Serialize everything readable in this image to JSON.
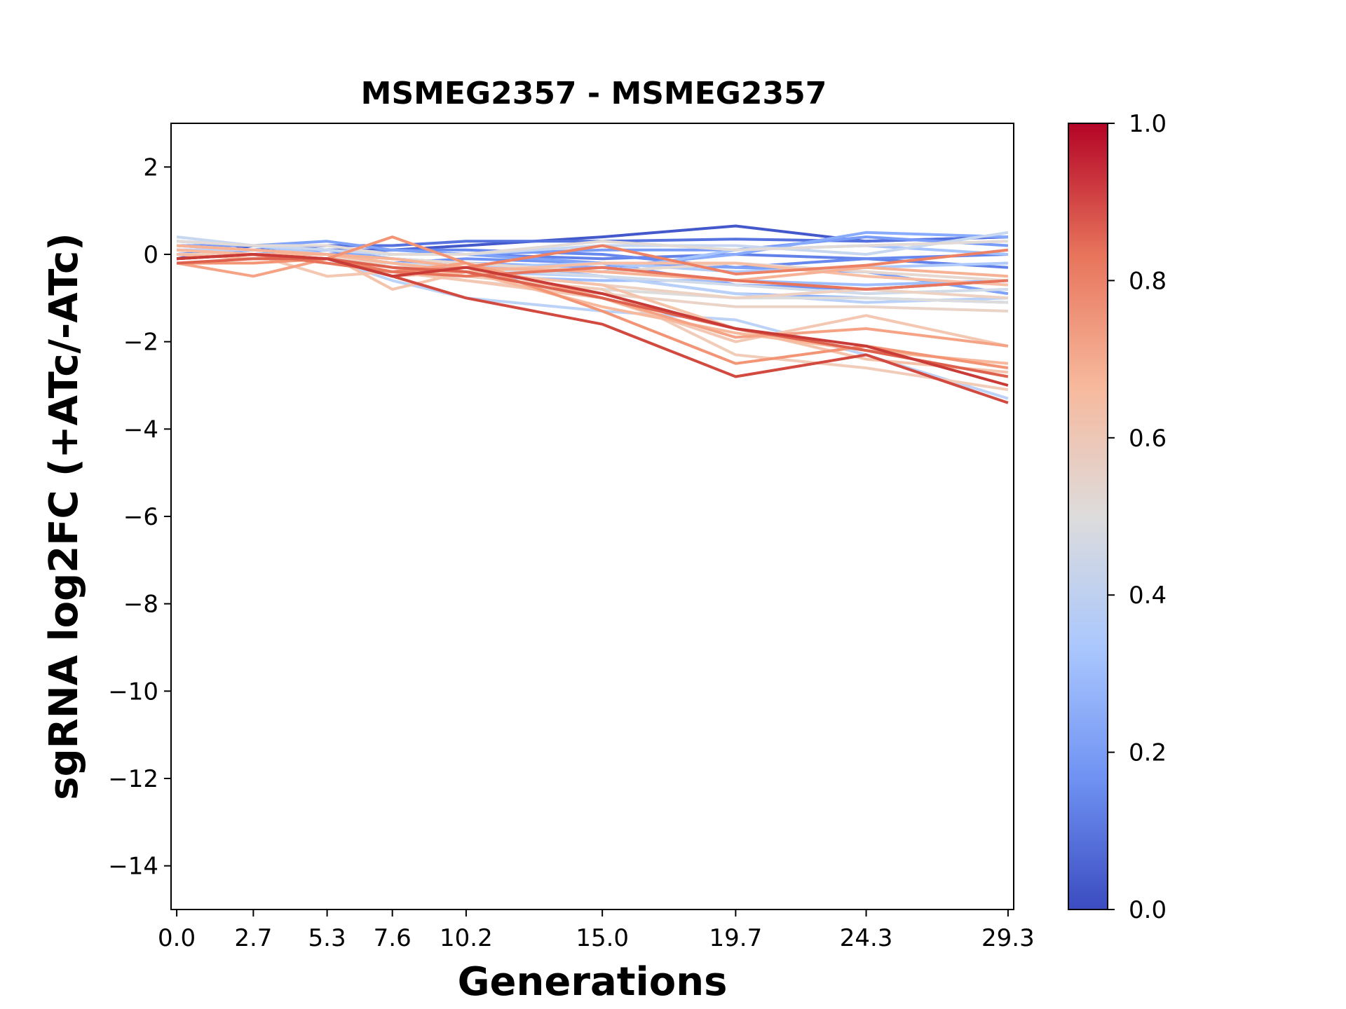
{
  "chart_data": {
    "type": "line",
    "title": "MSMEG2357 - MSMEG2357",
    "xlabel": "Generations",
    "ylabel": "sgRNA log2FC (+ATc/-ATc)",
    "x": [
      0.0,
      2.7,
      5.3,
      7.6,
      10.2,
      15.0,
      19.7,
      24.3,
      29.3
    ],
    "x_tick_labels": [
      "0.0",
      "2.7",
      "5.3",
      "7.6",
      "10.2",
      "15.0",
      "19.7",
      "24.3",
      "29.3"
    ],
    "xlim": [
      -0.2,
      29.5
    ],
    "ylim": [
      -15,
      3
    ],
    "y_ticks": [
      2,
      0,
      -2,
      -4,
      -6,
      -8,
      -10,
      -12,
      -14
    ],
    "y_tick_labels": [
      "2",
      "0",
      "−2",
      "−4",
      "−6",
      "−8",
      "−10",
      "−12",
      "−14"
    ],
    "grid": false,
    "colormap": "coolwarm",
    "colorbar": {
      "range": [
        0.0,
        1.0
      ],
      "ticks": [
        0.0,
        0.2,
        0.4,
        0.6,
        0.8,
        1.0
      ],
      "tick_labels": [
        "0.0",
        "0.2",
        "0.4",
        "0.6",
        "0.8",
        "1.0"
      ],
      "colors": [
        "#3b4cc0",
        "#6f92f3",
        "#aac7fd",
        "#dddcdc",
        "#f7b89c",
        "#e7745b",
        "#b40426"
      ]
    },
    "series": [
      {
        "value": 0.08,
        "color": "#4358cb",
        "values": [
          -0.1,
          0.2,
          0.1,
          0.1,
          0.2,
          0.4,
          0.65,
          0.3,
          0.4
        ]
      },
      {
        "value": 0.15,
        "color": "#5572df",
        "values": [
          0.0,
          0.1,
          0.2,
          0.2,
          0.3,
          0.3,
          0.35,
          0.3,
          0.4
        ]
      },
      {
        "value": 0.2,
        "color": "#6282ea",
        "values": [
          0.2,
          0.1,
          0.1,
          0.0,
          0.0,
          -0.1,
          0.0,
          -0.1,
          -0.3
        ]
      },
      {
        "value": 0.22,
        "color": "#6788ee",
        "values": [
          0.1,
          0.0,
          0.0,
          0.1,
          0.1,
          0.0,
          -0.3,
          -0.1,
          0.0
        ]
      },
      {
        "value": 0.25,
        "color": "#6f92f3",
        "values": [
          0.0,
          0.1,
          0.0,
          -0.2,
          -0.1,
          -0.2,
          -0.7,
          -0.8,
          -0.6
        ]
      },
      {
        "value": 0.28,
        "color": "#799cf8",
        "values": [
          0.2,
          0.2,
          0.1,
          0.0,
          0.0,
          0.1,
          0.1,
          0.4,
          0.2
        ]
      },
      {
        "value": 0.3,
        "color": "#7ea1fa",
        "values": [
          0.3,
          0.2,
          0.3,
          0.1,
          0.0,
          -0.2,
          -0.3,
          -0.4,
          -0.9
        ]
      },
      {
        "value": 0.33,
        "color": "#88abfd",
        "values": [
          0.0,
          0.0,
          0.1,
          -0.1,
          -0.2,
          -0.3,
          0.0,
          0.5,
          0.4
        ]
      },
      {
        "value": 0.35,
        "color": "#8db0fe",
        "values": [
          0.1,
          0.1,
          0.0,
          -0.1,
          -0.2,
          -0.5,
          -0.9,
          -1.0,
          -1.1
        ]
      },
      {
        "value": 0.38,
        "color": "#9ebeff",
        "values": [
          0.2,
          0.1,
          0.0,
          -0.3,
          -0.5,
          -0.6,
          -0.6,
          -0.7,
          -0.6
        ]
      },
      {
        "value": 0.4,
        "color": "#a5c3fe",
        "values": [
          0.0,
          0.0,
          -0.1,
          -0.2,
          -0.3,
          -0.4,
          0.1,
          0.2,
          0.0
        ]
      },
      {
        "value": 0.42,
        "color": "#afcafc",
        "values": [
          0.3,
          0.2,
          0.0,
          -0.2,
          -0.3,
          -0.2,
          -0.4,
          -0.3,
          -0.2
        ]
      },
      {
        "value": 0.44,
        "color": "#b9d0f9",
        "values": [
          0.1,
          0.1,
          0.0,
          -0.3,
          -0.4,
          -0.5,
          -0.9,
          -1.1,
          -1.0
        ]
      },
      {
        "value": 0.45,
        "color": "#bcd2f7",
        "values": [
          0.0,
          -0.1,
          -0.1,
          -0.6,
          -1.0,
          -1.3,
          -1.5,
          -2.3,
          -3.3
        ]
      },
      {
        "value": 0.47,
        "color": "#c7d7f0",
        "values": [
          0.4,
          0.2,
          0.1,
          0.0,
          0.0,
          0.2,
          0.2,
          0.0,
          0.5
        ]
      },
      {
        "value": 0.49,
        "color": "#d1dae9",
        "values": [
          0.2,
          0.1,
          0.0,
          -0.2,
          -0.3,
          -0.5,
          -0.7,
          -0.9,
          -0.8
        ]
      },
      {
        "value": 0.5,
        "color": "#dddcdc",
        "values": [
          0.0,
          0.0,
          -0.1,
          -0.2,
          -0.5,
          -0.8,
          -1.0,
          -1.0,
          -1.1
        ]
      },
      {
        "value": 0.52,
        "color": "#e1dad6",
        "values": [
          0.3,
          0.2,
          0.2,
          0.0,
          0.0,
          0.3,
          0.1,
          0.2,
          0.3
        ]
      },
      {
        "value": 0.54,
        "color": "#e6d7cf",
        "values": [
          0.1,
          0.0,
          0.0,
          -0.1,
          -0.2,
          -0.4,
          -0.2,
          -0.4,
          -0.6
        ]
      },
      {
        "value": 0.56,
        "color": "#ead4c8",
        "values": [
          0.2,
          0.1,
          0.0,
          -0.3,
          -0.6,
          -0.9,
          -1.2,
          -1.2,
          -1.3
        ]
      },
      {
        "value": 0.58,
        "color": "#edd2c3",
        "values": [
          0.0,
          0.0,
          0.0,
          -0.2,
          -0.4,
          -0.7,
          -1.0,
          -0.8,
          -1.0
        ]
      },
      {
        "value": 0.6,
        "color": "#f1ccb8",
        "values": [
          0.0,
          -0.1,
          -0.1,
          -0.3,
          -0.5,
          -0.8,
          -2.3,
          -2.6,
          -3.1
        ]
      },
      {
        "value": 0.62,
        "color": "#f3c7b1",
        "values": [
          0.1,
          0.0,
          -0.5,
          -0.4,
          -0.6,
          -1.0,
          -2.0,
          -1.4,
          -2.1
        ]
      },
      {
        "value": 0.64,
        "color": "#f5c2aa",
        "values": [
          0.2,
          0.1,
          0.0,
          -0.8,
          -0.4,
          -0.7,
          -1.7,
          -2.4,
          -2.7
        ]
      },
      {
        "value": 0.66,
        "color": "#f6bea4",
        "values": [
          0.0,
          -0.1,
          -0.1,
          -0.5,
          -0.4,
          -0.2,
          -0.2,
          -0.5,
          -0.7
        ]
      },
      {
        "value": 0.68,
        "color": "#f7b89c",
        "values": [
          0.1,
          0.0,
          0.0,
          -0.2,
          -0.4,
          -1.2,
          -1.8,
          -2.2,
          -2.5
        ]
      },
      {
        "value": 0.7,
        "color": "#f7b194",
        "values": [
          0.2,
          0.1,
          0.0,
          -0.1,
          -0.3,
          -0.4,
          -0.6,
          -0.3,
          -0.5
        ]
      },
      {
        "value": 0.72,
        "color": "#f6a385",
        "values": [
          -0.2,
          -0.5,
          -0.1,
          -0.4,
          -0.2,
          -1.0,
          -1.9,
          -1.7,
          -2.1
        ]
      },
      {
        "value": 0.75,
        "color": "#f39475",
        "values": [
          -0.2,
          -0.2,
          -0.1,
          0.4,
          -0.2,
          -1.3,
          -2.5,
          -2.1,
          -2.6
        ]
      },
      {
        "value": 0.78,
        "color": "#ec8165",
        "values": [
          -0.1,
          0.0,
          -0.1,
          -0.4,
          -0.3,
          0.2,
          -0.45,
          -0.25,
          0.1
        ]
      },
      {
        "value": 0.8,
        "color": "#e7745b",
        "values": [
          -0.1,
          0.0,
          -0.2,
          -0.4,
          -0.5,
          -0.3,
          -0.6,
          -0.8,
          -0.6
        ]
      },
      {
        "value": 0.84,
        "color": "#de614d",
        "values": [
          -0.2,
          -0.1,
          -0.1,
          -0.3,
          -0.4,
          -1.0,
          -1.7,
          -2.2,
          -2.8
        ]
      },
      {
        "value": 0.88,
        "color": "#d1493f",
        "values": [
          -0.1,
          0.0,
          -0.1,
          -0.5,
          -1.0,
          -1.6,
          -2.8,
          -2.3,
          -3.4
        ]
      },
      {
        "value": 0.9,
        "color": "#c93b36",
        "values": [
          -0.1,
          0.0,
          -0.1,
          -0.5,
          -0.3,
          -0.9,
          -1.7,
          -2.1,
          -3.0
        ]
      }
    ]
  }
}
